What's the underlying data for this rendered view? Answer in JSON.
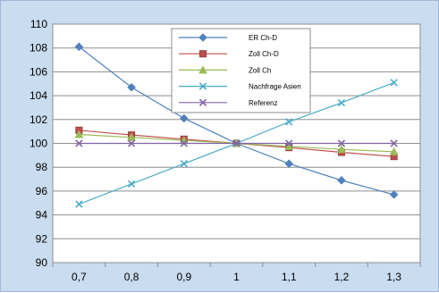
{
  "chart_data": {
    "type": "line",
    "title": "",
    "xlabel": "",
    "ylabel": "",
    "x": [
      "0,7",
      "0,8",
      "0,9",
      "1",
      "1,1",
      "1,2",
      "1,3"
    ],
    "ylim": [
      90,
      110
    ],
    "yticks": [
      "90",
      "92",
      "94",
      "96",
      "98",
      "100",
      "102",
      "104",
      "106",
      "108",
      "110"
    ],
    "grid": "horizontal",
    "legend_position": "top-center",
    "series": [
      {
        "name": "ER Ch-D",
        "color": "#4f81bd",
        "marker": "diamond",
        "values": [
          108.1,
          104.7,
          102.1,
          100.0,
          98.3,
          96.9,
          95.7
        ]
      },
      {
        "name": "Zoll Ch-D",
        "color": "#c0504d",
        "marker": "square",
        "values": [
          101.1,
          100.7,
          100.35,
          100.0,
          99.65,
          99.25,
          98.9
        ]
      },
      {
        "name": "Zoll Ch",
        "color": "#9bbb59",
        "marker": "triangle",
        "values": [
          100.75,
          100.5,
          100.25,
          100.0,
          99.75,
          99.5,
          99.3
        ]
      },
      {
        "name": "Nachfrage Asien",
        "color": "#4bacc6",
        "marker": "x",
        "values": [
          94.9,
          96.6,
          98.3,
          100.0,
          101.8,
          103.4,
          105.1
        ]
      },
      {
        "name": "Referenz",
        "color": "#8064a2",
        "marker": "x",
        "values": [
          100.0,
          100.0,
          100.0,
          100.0,
          100.0,
          100.0,
          100.0
        ]
      }
    ]
  }
}
